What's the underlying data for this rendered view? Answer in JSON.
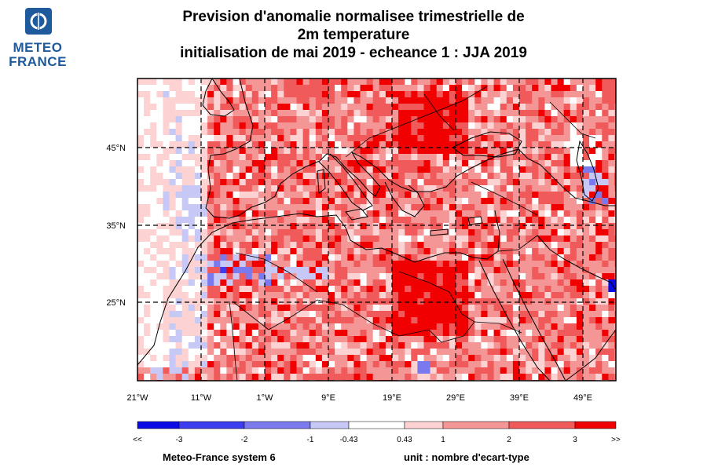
{
  "logo": {
    "line1": "METEO",
    "line2": "FRANCE",
    "accent_color": "#1e5a9c"
  },
  "title": {
    "line1": "Prevision d'anomalie normalisee trimestrielle de",
    "line2": "2m temperature",
    "line3": "initialisation de mai 2019  -  echeance 1 : JJA 2019"
  },
  "map": {
    "lon_labels": [
      "21°W",
      "11°W",
      "1°W",
      "9°E",
      "19°E",
      "29°E",
      "39°E",
      "49°E"
    ],
    "lat_labels": [
      "45°N",
      "35°N",
      "25°N"
    ]
  },
  "colorbar": {
    "colors": [
      "#0a0ae6",
      "#3c3cf0",
      "#7a7aee",
      "#c8c8f7",
      "#ffffff",
      "#fcd2d2",
      "#f59696",
      "#f05a5a",
      "#f00000"
    ],
    "labels": [
      "<<",
      "-3",
      "-2",
      "-1",
      "-0.43",
      "0.43",
      "1",
      "2",
      "3",
      ">>"
    ]
  },
  "footer": {
    "model": "Meteo-France system 6",
    "unit": "unit : nombre d'ecart-type"
  }
}
